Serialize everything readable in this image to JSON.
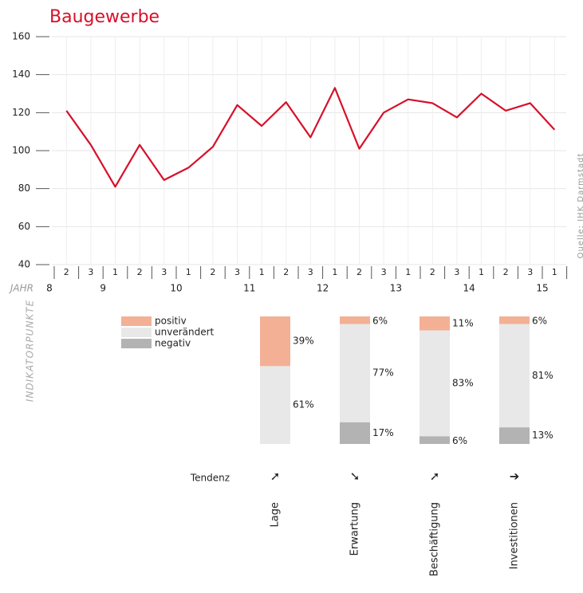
{
  "chart_data": [
    {
      "type": "line",
      "title": "Baugewerbe",
      "categories": [
        "2",
        "3",
        "1",
        "2",
        "3",
        "1",
        "2",
        "3",
        "1",
        "2",
        "3",
        "1",
        "2",
        "3",
        "1",
        "2",
        "3",
        "1",
        "2",
        "3",
        "1"
      ],
      "years": [
        "8",
        "9",
        "10",
        "11",
        "12",
        "13",
        "14",
        "15"
      ],
      "x_label": "JAHR",
      "source": "Quelle: IHK Darmstadt",
      "series": [
        {
          "name": "Baugewerbe",
          "color": "#d7102a",
          "values": [
            121,
            103,
            81,
            103,
            84.5,
            91,
            102,
            124,
            113,
            125.5,
            107,
            133,
            101,
            120,
            127,
            125,
            117.5,
            130,
            121,
            125,
            111
          ]
        }
      ],
      "ylim": [
        40,
        160
      ],
      "yticks": [
        40,
        60,
        80,
        100,
        120,
        140,
        160
      ],
      "grid": true
    },
    {
      "type": "stacked_bar",
      "side_label": "INDIKATORPUNKTE",
      "categories": [
        "Lage",
        "Erwartung",
        "Beschäftigung",
        "Investitionen"
      ],
      "tendency_label": "Tendenz",
      "tendency": [
        "➚",
        "➘",
        "➚",
        "➔"
      ],
      "series": [
        {
          "name": "positiv",
          "color": "#f4b095",
          "values": [
            39,
            6,
            11,
            6
          ],
          "value_labels": [
            "39%",
            "6%",
            "11%",
            "6%"
          ]
        },
        {
          "name": "unverändert",
          "color": "#e8e8e8",
          "values": [
            61,
            77,
            83,
            81
          ],
          "value_labels": [
            "61%",
            "77%",
            "83%",
            "81%"
          ]
        },
        {
          "name": "negativ",
          "color": "#b3b3b3",
          "values": [
            null,
            17,
            6,
            13
          ],
          "value_labels": [
            null,
            "17%",
            "6%",
            "13%"
          ]
        }
      ]
    }
  ]
}
